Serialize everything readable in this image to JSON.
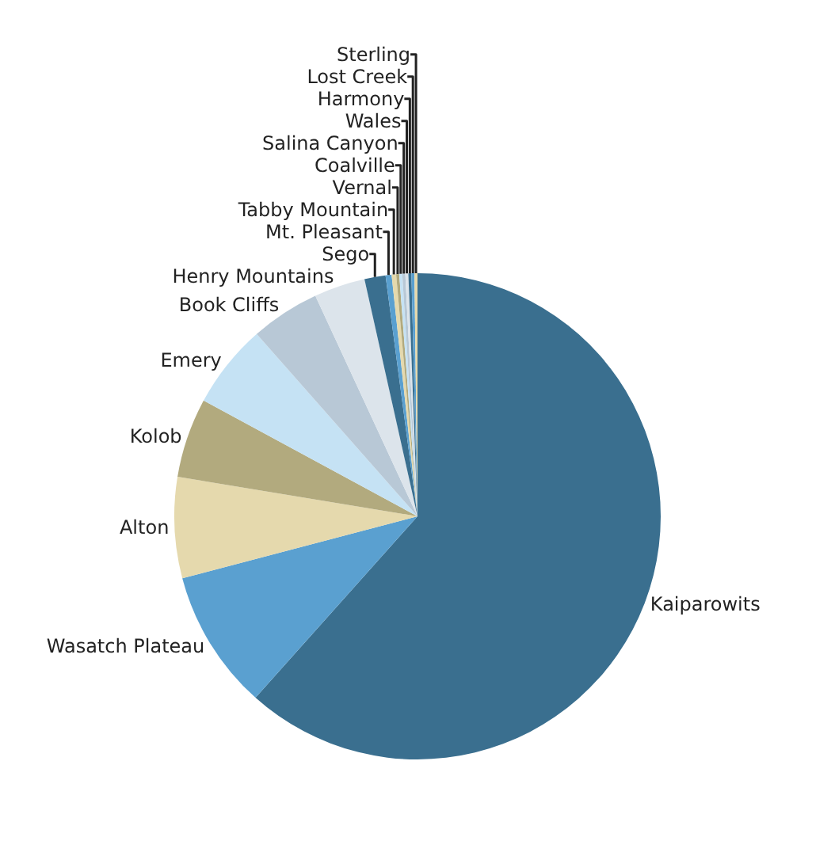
{
  "chart_data": {
    "type": "pie",
    "categories": [
      "Kaiparowits",
      "Wasatch Plateau",
      "Alton",
      "Kolob",
      "Emery",
      "Book Cliffs",
      "Henry Mountains",
      "Sego",
      "Mt. Pleasant",
      "Tabby Mountain",
      "Vernal",
      "Coalville",
      "Salina Canyon",
      "Wales",
      "Harmony",
      "Lost Creek",
      "Sterling"
    ],
    "values": [
      61.6,
      9.3,
      6.7,
      5.3,
      5.6,
      4.6,
      3.4,
      1.4,
      0.4,
      0.3,
      0.2,
      0.2,
      0.2,
      0.2,
      0.2,
      0.2,
      0.2
    ],
    "colors": [
      "#3a6f8f",
      "#5aa0d0",
      "#e5d9ad",
      "#b2aa7e",
      "#c5e2f4",
      "#b8c8d6",
      "#dce4eb",
      "#3a6f8f",
      "#5aa0d0",
      "#e5d9ad",
      "#b2aa7e",
      "#c5e2f4",
      "#b8c8d6",
      "#dce4eb",
      "#3a6f8f",
      "#5aa0d0",
      "#e5d9ad"
    ],
    "legend": false
  }
}
